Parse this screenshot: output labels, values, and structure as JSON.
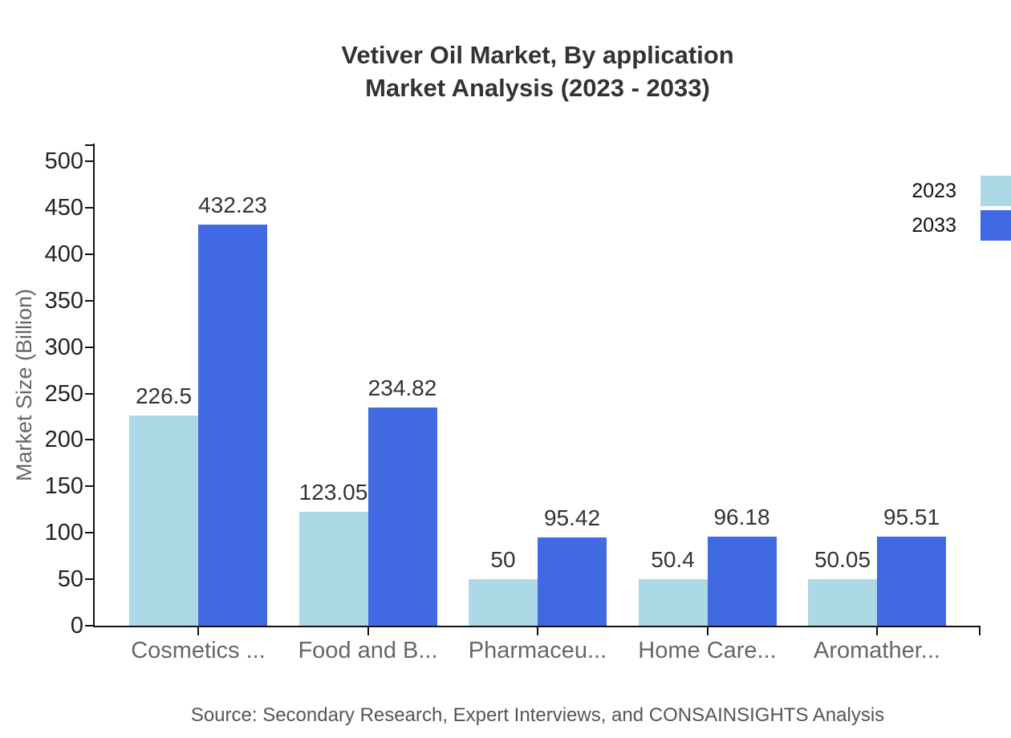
{
  "title": {
    "line1": "Vetiver Oil Market, By application",
    "line2": "Market Analysis (2023 - 2033)"
  },
  "footer": {
    "source": "Source: Secondary Research, Expert Interviews, and CONSAINSIGHTS Analysis"
  },
  "chart_data": {
    "type": "bar",
    "title": "Vetiver Oil Market, By application Market Analysis (2023 - 2033)",
    "categories": [
      "Cosmetics ...",
      "Food and B...",
      "Pharmaceu...",
      "Home Care...",
      "Aromather..."
    ],
    "series": [
      {
        "name": "2023",
        "color": "#ADD8E6",
        "values": [
          226.5,
          123.05,
          50,
          50.4,
          50.05
        ]
      },
      {
        "name": "2033",
        "color": "#4169E1",
        "values": [
          432.23,
          234.82,
          95.42,
          96.18,
          95.51
        ]
      }
    ],
    "ylabel": "Market Size (Billion)",
    "xlabel": "",
    "ylim": [
      0,
      500
    ],
    "y_tick_step": 50,
    "grid": false,
    "legend_position": "top-right",
    "value_labels": true,
    "colors": {
      "axis": "#111111",
      "title_text": "#333333",
      "tick_label_text": "#222222",
      "category_label_text": "#666666",
      "value_label_text": "#333333",
      "source_text": "#555555"
    }
  }
}
